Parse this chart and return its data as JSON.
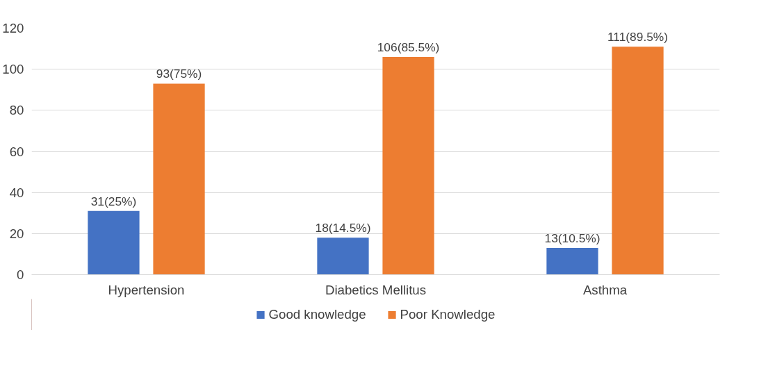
{
  "chart_data": {
    "type": "bar",
    "categories": [
      "Hypertension",
      "Diabetics Mellitus",
      "Asthma"
    ],
    "series": [
      {
        "name": "Good knowledge",
        "color": "#4472c4",
        "values": [
          31,
          18,
          13
        ],
        "value_labels": [
          "31(25%)",
          "18(14.5%)",
          "13(10.5%)"
        ]
      },
      {
        "name": "Poor Knowledge",
        "color": "#ed7d31",
        "values": [
          93,
          106,
          111
        ],
        "value_labels": [
          "93(75%)",
          "106(85.5%)",
          "111(89.5%)"
        ]
      }
    ],
    "ylim": [
      0,
      120
    ],
    "yticks": [
      0,
      20,
      40,
      60,
      80,
      100,
      120
    ],
    "grid": "y",
    "legend": "bottom"
  }
}
